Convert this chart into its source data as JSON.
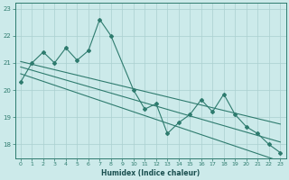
{
  "xlabel": "Humidex (Indice chaleur)",
  "bg_color": "#cceaea",
  "line_color": "#2e7b6e",
  "grid_color": "#aacfcf",
  "x": [
    0,
    1,
    2,
    3,
    4,
    5,
    6,
    7,
    8,
    9,
    10,
    11,
    12,
    13,
    14,
    15,
    16,
    17,
    18,
    19,
    20,
    21,
    22,
    23
  ],
  "series1": [
    20.3,
    21.0,
    21.4,
    21.0,
    21.55,
    21.1,
    21.45,
    22.6,
    22.0,
    null,
    20.0,
    19.3,
    19.5,
    18.4,
    18.8,
    19.1,
    19.65,
    19.2,
    19.85,
    19.1,
    18.65,
    18.4,
    18.0,
    17.7
  ],
  "trend1": [
    21.05,
    20.95,
    20.85,
    20.75,
    20.65,
    20.55,
    20.45,
    20.35,
    20.25,
    20.15,
    20.05,
    19.95,
    19.85,
    19.75,
    19.65,
    19.55,
    19.45,
    19.35,
    19.25,
    19.15,
    19.05,
    18.95,
    18.85,
    18.75
  ],
  "trend2": [
    20.85,
    20.73,
    20.61,
    20.49,
    20.37,
    20.25,
    20.13,
    20.01,
    19.89,
    19.77,
    19.65,
    19.53,
    19.41,
    19.29,
    19.17,
    19.05,
    18.93,
    18.81,
    18.69,
    18.57,
    18.45,
    18.33,
    18.21,
    18.09
  ],
  "trend3": [
    20.6,
    20.46,
    20.32,
    20.18,
    20.04,
    19.9,
    19.76,
    19.62,
    19.48,
    19.34,
    19.2,
    19.06,
    18.92,
    18.78,
    18.64,
    18.5,
    18.36,
    18.22,
    18.08,
    17.94,
    17.8,
    17.66,
    17.52,
    17.38
  ],
  "ylim": [
    17.5,
    23.2
  ],
  "xlim": [
    -0.5,
    23.5
  ],
  "yticks": [
    18,
    19,
    20,
    21,
    22,
    23
  ],
  "xticks": [
    0,
    1,
    2,
    3,
    4,
    5,
    6,
    7,
    8,
    9,
    10,
    11,
    12,
    13,
    14,
    15,
    16,
    17,
    18,
    19,
    20,
    21,
    22,
    23
  ]
}
